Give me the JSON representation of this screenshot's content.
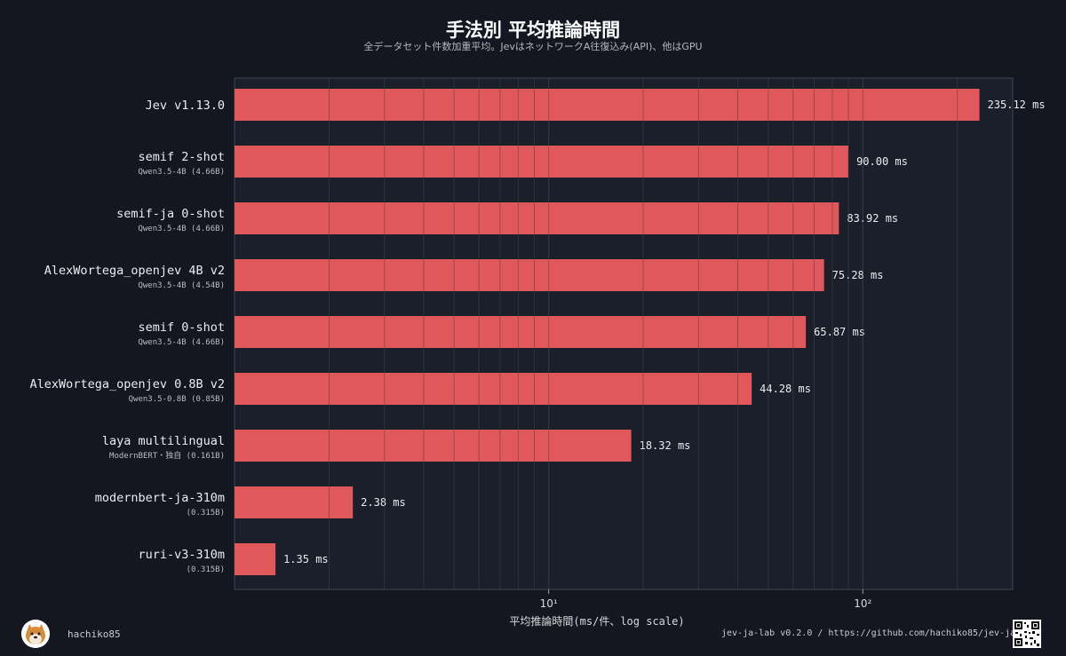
{
  "page": {
    "title": "手法別 平均推論時間",
    "subtitle": "全データセット件数加重平均。JevはネットワークA往復込み(API)、他はGPU",
    "author": "hachiko85",
    "credit": "jev-ja-lab v0.2.0 / https://github.com/hachiko85/jev-ja-lab"
  },
  "icons": {
    "avatar": "shiba-dog-avatar-icon",
    "qr": "qr-code-icon"
  },
  "colors": {
    "background": "#14171f",
    "plot_bg": "#1b1f29",
    "bar": "#e0585c",
    "grid": "#3b404b"
  },
  "chart_data": {
    "type": "bar",
    "orientation": "horizontal",
    "x_scale": "log",
    "xlabel": "平均推論時間(ms/件、log scale)",
    "xlim": [
      1,
      300
    ],
    "x_ticks": [
      {
        "value": 10,
        "label": "10¹"
      },
      {
        "value": 100,
        "label": "10²"
      }
    ],
    "grid": true,
    "value_unit": "ms",
    "categories": [
      {
        "name": "Jev v1.13.0",
        "sub": "",
        "value": 235.12,
        "label": "235.12 ms"
      },
      {
        "name": "semif 2-shot",
        "sub": "Qwen3.5-4B (4.66B)",
        "value": 90.0,
        "label": "90.00 ms"
      },
      {
        "name": "semif-ja 0-shot",
        "sub": "Qwen3.5-4B (4.66B)",
        "value": 83.92,
        "label": "83.92 ms"
      },
      {
        "name": "AlexWortega_openjev 4B v2",
        "sub": "Qwen3.5-4B (4.54B)",
        "value": 75.28,
        "label": "75.28 ms"
      },
      {
        "name": "semif 0-shot",
        "sub": "Qwen3.5-4B (4.66B)",
        "value": 65.87,
        "label": "65.87 ms"
      },
      {
        "name": "AlexWortega_openjev 0.8B v2",
        "sub": "Qwen3.5-0.8B (0.85B)",
        "value": 44.28,
        "label": "44.28 ms"
      },
      {
        "name": "laya multilingual",
        "sub": "ModernBERT・独自 (0.161B)",
        "value": 18.32,
        "label": "18.32 ms"
      },
      {
        "name": "modernbert-ja-310m",
        "sub": "(0.315B)",
        "value": 2.38,
        "label": "2.38 ms"
      },
      {
        "name": "ruri-v3-310m",
        "sub": "(0.315B)",
        "value": 1.35,
        "label": "1.35 ms"
      }
    ]
  }
}
